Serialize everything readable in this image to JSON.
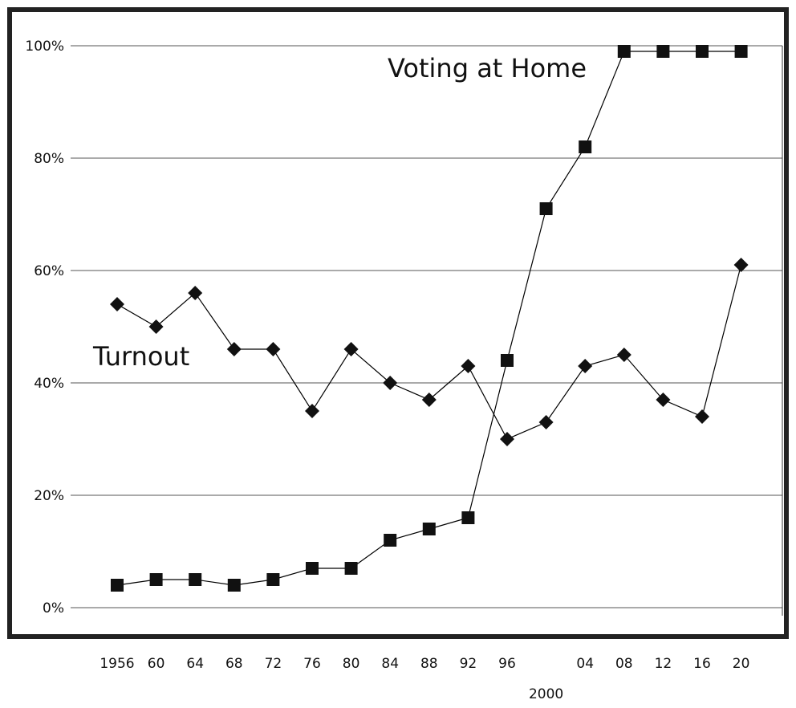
{
  "chart_data": {
    "type": "line",
    "categories": [
      "1956",
      "60",
      "64",
      "68",
      "72",
      "76",
      "80",
      "84",
      "88",
      "92",
      "96",
      "2000",
      "04",
      "08",
      "12",
      "16",
      "20"
    ],
    "series": [
      {
        "name": "Turnout",
        "marker": "diamond",
        "values": [
          54,
          50,
          56,
          46,
          46,
          35,
          46,
          40,
          37,
          43,
          30,
          33,
          43,
          45,
          37,
          34,
          61
        ]
      },
      {
        "name": "Voting at Home",
        "marker": "square",
        "values": [
          4,
          5,
          5,
          4,
          5,
          7,
          7,
          12,
          14,
          16,
          44,
          71,
          82,
          99,
          99,
          99,
          99
        ]
      }
    ],
    "y_ticks": [
      "0%",
      "20%",
      "40%",
      "60%",
      "80%",
      "100%"
    ],
    "ylim": [
      0,
      100
    ],
    "grid": "horizontal",
    "legend": "none",
    "colors": {
      "line": "#000000",
      "marker": "#111111",
      "frame": "#222222"
    }
  }
}
